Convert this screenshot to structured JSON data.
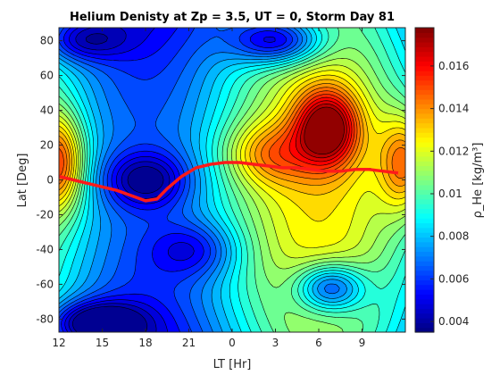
{
  "chart_data": {
    "type": "heatmap",
    "title": "Helium Denisty at Zp = 3.5, UT = 0, Storm Day 81",
    "xlabel": "LT [Hr]",
    "ylabel": "Lat [Deg]",
    "colorbar_label": "ρ_He [kg/m³]",
    "colormap": "jet",
    "x_ticks": [
      "12",
      "15",
      "18",
      "21",
      "0",
      "3",
      "6",
      "9"
    ],
    "y_ticks": [
      "-80",
      "-60",
      "-40",
      "-20",
      "0",
      "20",
      "40",
      "60",
      "80"
    ],
    "xlim_hours_from_noon": [
      0,
      24
    ],
    "ylim": [
      -87.5,
      87.5
    ],
    "clim": [
      0.0035,
      0.0178
    ],
    "colorbar_ticks": [
      "0.004",
      "0.006",
      "0.008",
      "0.01",
      "0.012",
      "0.014",
      "0.016"
    ],
    "colorbar_tick_values": [
      0.004,
      0.006,
      0.008,
      0.01,
      0.012,
      0.014,
      0.016
    ],
    "contour_levels": 28,
    "features": [
      {
        "kind": "max",
        "lt": 6.6,
        "lat": 30,
        "value": 0.0175
      },
      {
        "kind": "max",
        "lt": 12.0,
        "lat": 10,
        "value": 0.0155
      },
      {
        "kind": "min",
        "lt": 3.5,
        "lat": 82,
        "value": 0.0038
      },
      {
        "kind": "min",
        "lt": 6.8,
        "lat": -60,
        "value": 0.0036
      },
      {
        "kind": "min",
        "lt": 13.5,
        "lat": 80,
        "value": 0.0045
      },
      {
        "kind": "min",
        "lt": 14.5,
        "lat": -80,
        "value": 0.0045
      }
    ],
    "terminator_line": {
      "color": "#ff1a1a",
      "lt": [
        12,
        13,
        14,
        15,
        16,
        17,
        18,
        18.8,
        19.5,
        20.5,
        21.5,
        22.5,
        23.5,
        0.5,
        1.5,
        2.5,
        3.5,
        4.5,
        5.5,
        6.5,
        7.5,
        8.5,
        9.5,
        10.5,
        11.5
      ],
      "lat": [
        2,
        0,
        -2,
        -4,
        -6,
        -9,
        -12,
        -11,
        -5,
        2,
        7,
        9,
        10,
        10,
        9,
        8,
        7,
        7,
        6,
        5,
        5,
        6,
        6,
        5,
        4
      ]
    }
  }
}
